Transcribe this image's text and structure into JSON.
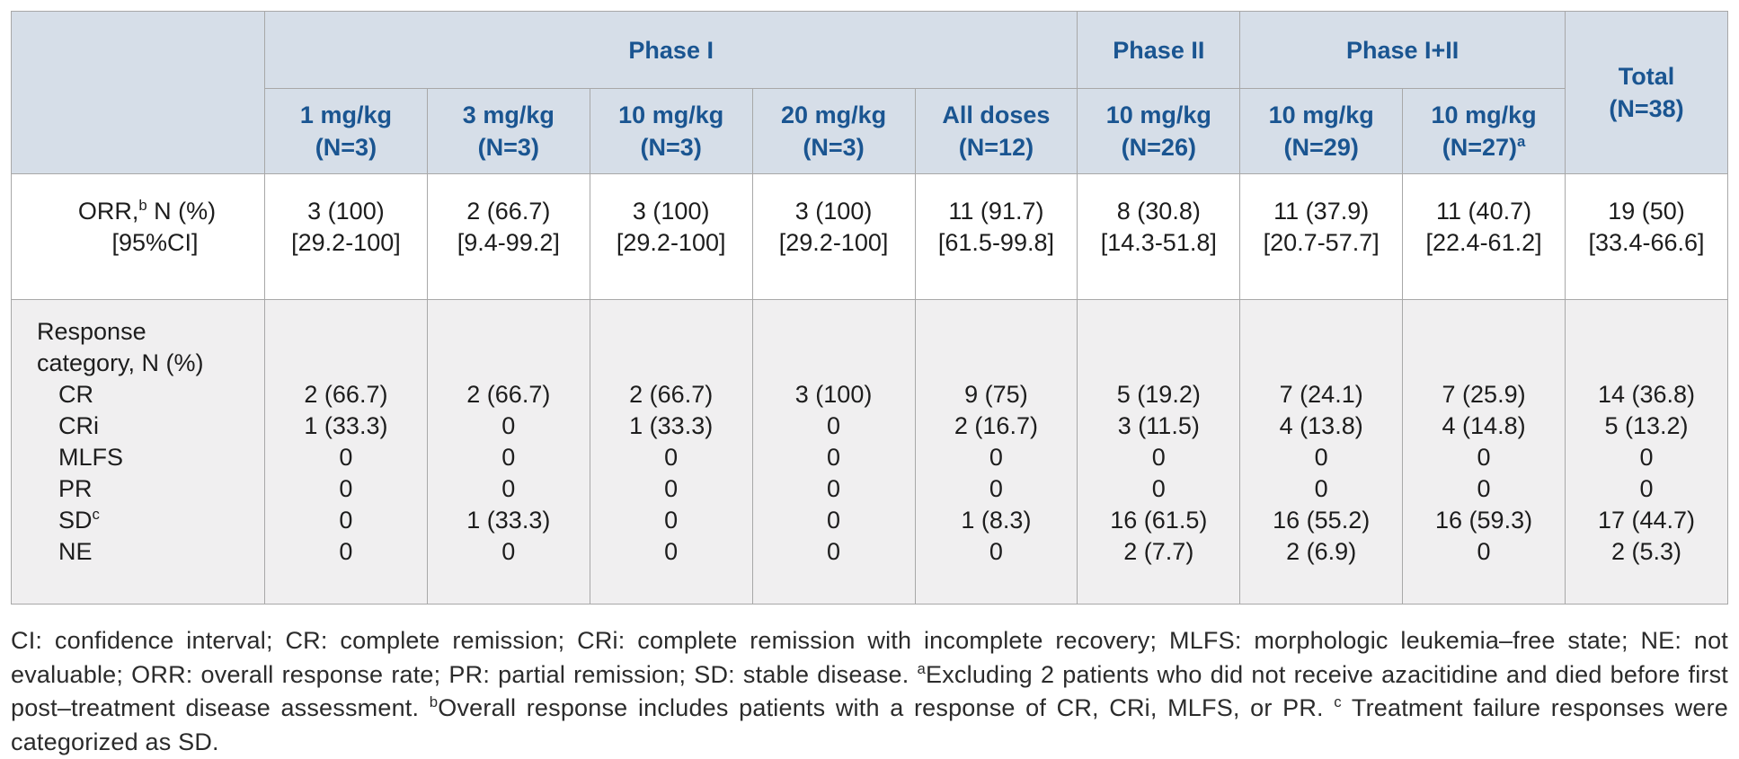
{
  "table": {
    "col_groups": [
      {
        "label": "Phase I",
        "span": 5
      },
      {
        "label": "Phase II",
        "span": 1
      },
      {
        "label": "Phase I+II",
        "span": 2
      }
    ],
    "total_header": {
      "line1": "Total",
      "line2": "(N=38)"
    },
    "columns": [
      {
        "dose": "1 mg/kg",
        "n": "(N=3)"
      },
      {
        "dose": "3 mg/kg",
        "n": "(N=3)"
      },
      {
        "dose": "10 mg/kg",
        "n": "(N=3)"
      },
      {
        "dose": "20 mg/kg",
        "n": "(N=3)"
      },
      {
        "dose": "All doses",
        "n": "(N=12)"
      },
      {
        "dose": "10 mg/kg",
        "n": "(N=26)"
      },
      {
        "dose": "10 mg/kg",
        "n": "(N=29)"
      },
      {
        "dose": "10 mg/kg",
        "n": "(N=27)",
        "sup": "a"
      }
    ],
    "orr": {
      "label": "ORR,",
      "label_sup": "b",
      "label_rest": " N (%)",
      "label_line2": "[95%CI]",
      "values": [
        {
          "n": "3 (100)",
          "ci": "[29.2-100]"
        },
        {
          "n": "2 (66.7)",
          "ci": "[9.4-99.2]"
        },
        {
          "n": "3 (100)",
          "ci": "[29.2-100]"
        },
        {
          "n": "3 (100)",
          "ci": "[29.2-100]"
        },
        {
          "n": "11 (91.7)",
          "ci": "[61.5-99.8]"
        },
        {
          "n": "8 (30.8)",
          "ci": "[14.3-51.8]"
        },
        {
          "n": "11 (37.9)",
          "ci": "[20.7-57.7]"
        },
        {
          "n": "11 (40.7)",
          "ci": "[22.4-61.2]"
        },
        {
          "n": "19 (50)",
          "ci": "[33.4-66.6]"
        }
      ]
    },
    "response": {
      "header_line1": "Response",
      "header_line2": "category, N (%)",
      "rows": [
        {
          "label": "CR",
          "values": [
            "2 (66.7)",
            "2 (66.7)",
            "2 (66.7)",
            "3 (100)",
            "9 (75)",
            "5 (19.2)",
            "7 (24.1)",
            "7 (25.9)",
            "14 (36.8)"
          ]
        },
        {
          "label": "CRi",
          "values": [
            "1 (33.3)",
            "0",
            "1 (33.3)",
            "0",
            "2 (16.7)",
            "3 (11.5)",
            "4 (13.8)",
            "4 (14.8)",
            "5 (13.2)"
          ]
        },
        {
          "label": "MLFS",
          "values": [
            "0",
            "0",
            "0",
            "0",
            "0",
            "0",
            "0",
            "0",
            "0"
          ]
        },
        {
          "label": "PR",
          "values": [
            "0",
            "0",
            "0",
            "0",
            "0",
            "0",
            "0",
            "0",
            "0"
          ]
        },
        {
          "label": "SD",
          "sup": "c",
          "values": [
            "0",
            "1 (33.3)",
            "0",
            "0",
            "1 (8.3)",
            "16 (61.5)",
            "16 (55.2)",
            "16 (59.3)",
            "17 (44.7)"
          ]
        },
        {
          "label": "NE",
          "values": [
            "0",
            "0",
            "0",
            "0",
            "0",
            "2 (7.7)",
            "2 (6.9)",
            "0",
            "2 (5.3)"
          ]
        }
      ]
    }
  },
  "footnote": {
    "segments": [
      {
        "text": "CI: confidence interval; CR: complete remission; CRi: complete remission with incomplete recovery; MLFS: morphologic leukemia–free state; NE: not evaluable; ORR: overall response rate; PR: partial remission; SD: stable disease. "
      },
      {
        "sup": "a"
      },
      {
        "text": "Excluding 2 patients who did not receive azacitidine and died before first post–treatment disease assessment. "
      },
      {
        "sup": "b"
      },
      {
        "text": "Overall response includes patients with a response of CR, CRi, MLFS, or PR. "
      },
      {
        "sup": "c"
      },
      {
        "text": " Treatment failure responses were categorized as SD."
      }
    ]
  }
}
